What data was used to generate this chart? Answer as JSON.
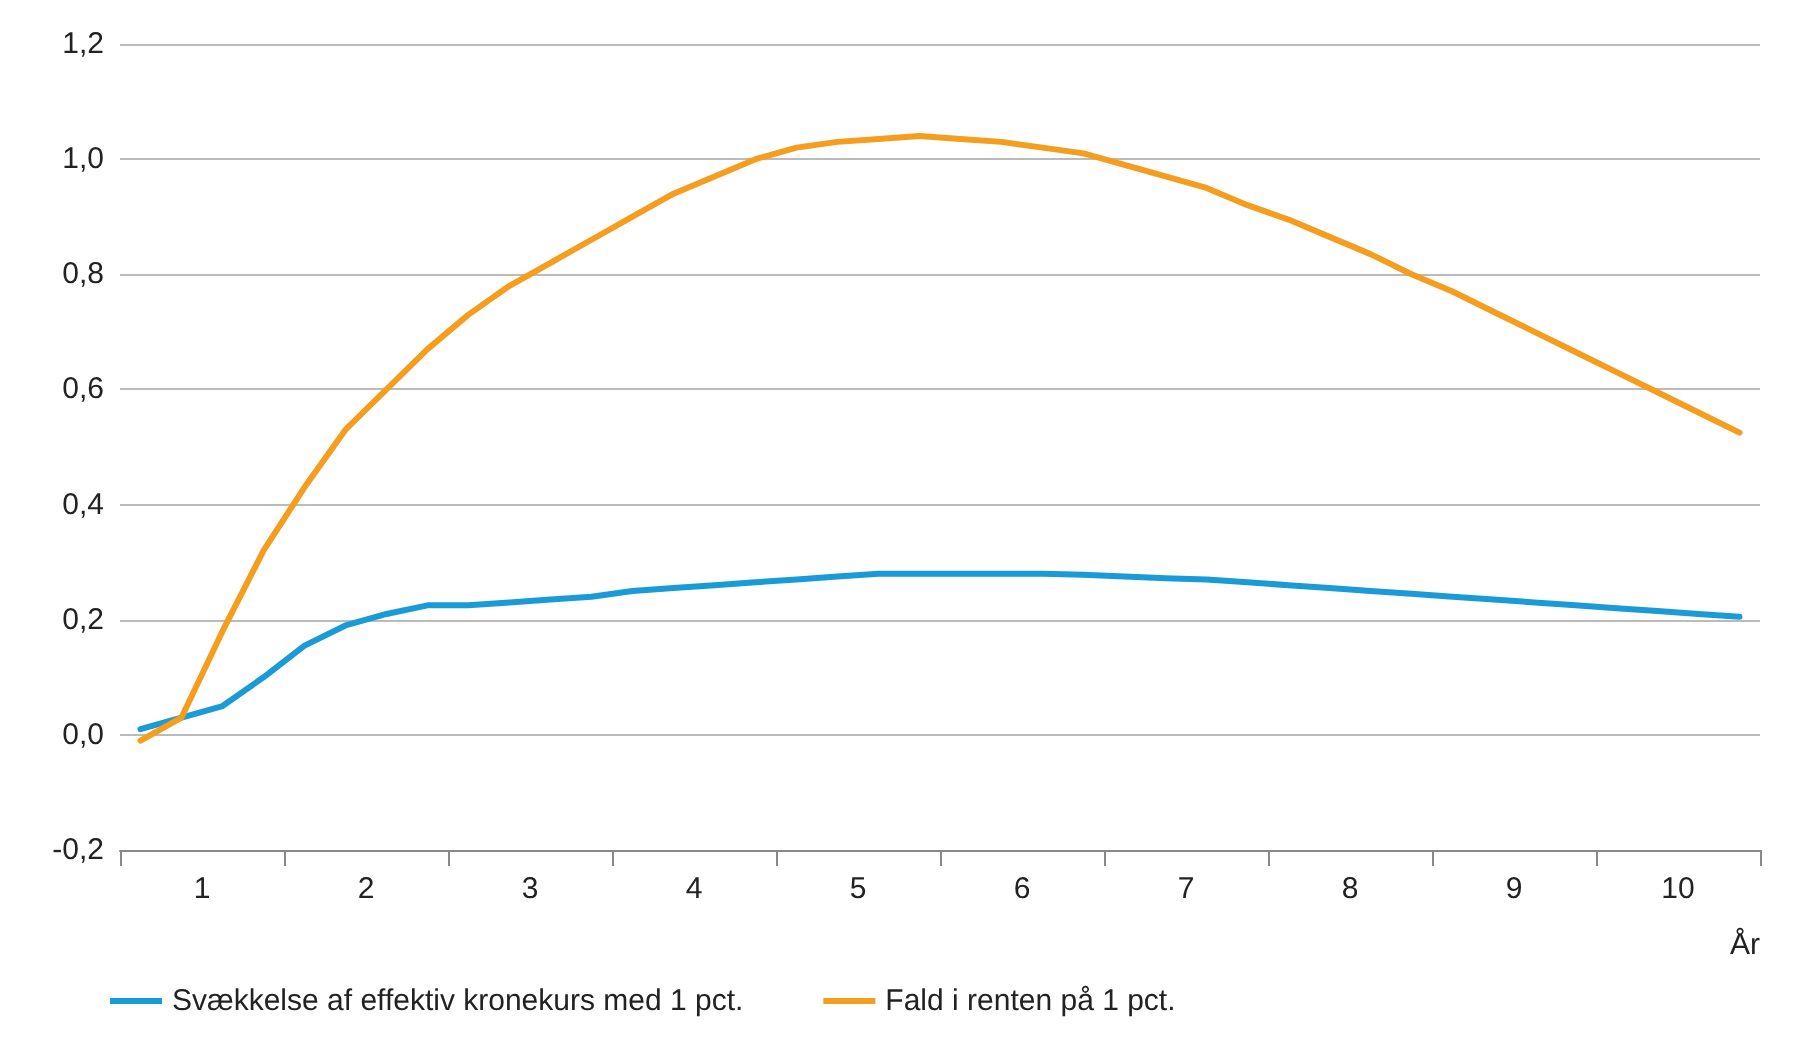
{
  "chart_data": {
    "type": "line",
    "xlabel": "År",
    "x": [
      0.125,
      0.375,
      0.625,
      0.875,
      1.125,
      1.375,
      1.625,
      1.875,
      2.125,
      2.375,
      2.625,
      2.875,
      3.125,
      3.375,
      3.625,
      3.875,
      4.125,
      4.375,
      4.625,
      4.875,
      5.125,
      5.375,
      5.625,
      5.875,
      6.125,
      6.375,
      6.625,
      6.875,
      7.125,
      7.375,
      7.625,
      7.875,
      8.125,
      8.375,
      8.625,
      8.875,
      9.125,
      9.375,
      9.625,
      9.875
    ],
    "series": [
      {
        "name": "Svækkelse af effektiv kronekurs med 1 pct.",
        "color": "#1a9bd7",
        "values": [
          0.01,
          0.03,
          0.05,
          0.1,
          0.155,
          0.19,
          0.21,
          0.225,
          0.225,
          0.23,
          0.235,
          0.24,
          0.25,
          0.255,
          0.26,
          0.265,
          0.27,
          0.275,
          0.28,
          0.28,
          0.28,
          0.28,
          0.28,
          0.278,
          0.275,
          0.272,
          0.27,
          0.265,
          0.26,
          0.255,
          0.25,
          0.245,
          0.24,
          0.235,
          0.23,
          0.225,
          0.22,
          0.215,
          0.21,
          0.205
        ]
      },
      {
        "name": "Fald i renten på 1 pct.",
        "color": "#f59d1e",
        "values": [
          -0.01,
          0.03,
          0.18,
          0.32,
          0.43,
          0.53,
          0.6,
          0.67,
          0.73,
          0.78,
          0.82,
          0.86,
          0.9,
          0.94,
          0.97,
          1.0,
          1.02,
          1.03,
          1.035,
          1.04,
          1.035,
          1.03,
          1.02,
          1.01,
          0.99,
          0.97,
          0.95,
          0.92,
          0.895,
          0.865,
          0.835,
          0.8,
          0.77,
          0.735,
          0.7,
          0.665,
          0.63,
          0.595,
          0.56,
          0.525
        ]
      }
    ],
    "xlim": [
      0,
      10
    ],
    "xticks": [
      {
        "value": 0,
        "label": null
      },
      {
        "value": 0.5,
        "label": "1"
      },
      {
        "value": 1,
        "label": null
      },
      {
        "value": 1.5,
        "label": "2"
      },
      {
        "value": 2,
        "label": null
      },
      {
        "value": 2.5,
        "label": "3"
      },
      {
        "value": 3,
        "label": null
      },
      {
        "value": 3.5,
        "label": "4"
      },
      {
        "value": 4,
        "label": null
      },
      {
        "value": 4.5,
        "label": "5"
      },
      {
        "value": 5,
        "label": null
      },
      {
        "value": 5.5,
        "label": "6"
      },
      {
        "value": 6,
        "label": null
      },
      {
        "value": 6.5,
        "label": "7"
      },
      {
        "value": 7,
        "label": null
      },
      {
        "value": 7.5,
        "label": "8"
      },
      {
        "value": 8,
        "label": null
      },
      {
        "value": 8.5,
        "label": "9"
      },
      {
        "value": 9,
        "label": null
      },
      {
        "value": 9.5,
        "label": "10"
      },
      {
        "value": 10,
        "label": null
      }
    ],
    "ylim": [
      -0.2,
      1.2
    ],
    "yticks": [
      {
        "value": -0.2,
        "label": "-0,2"
      },
      {
        "value": 0,
        "label": "0,0"
      },
      {
        "value": 0.2,
        "label": "0,2"
      },
      {
        "value": 0.4,
        "label": "0,4"
      },
      {
        "value": 0.6,
        "label": "0,6"
      },
      {
        "value": 0.8,
        "label": "0,8"
      },
      {
        "value": 1.0,
        "label": "1,0"
      },
      {
        "value": 1.2,
        "label": "1,2"
      }
    ],
    "grid": "y",
    "legend": "bottom",
    "marker": "none",
    "line_style": "solid"
  }
}
